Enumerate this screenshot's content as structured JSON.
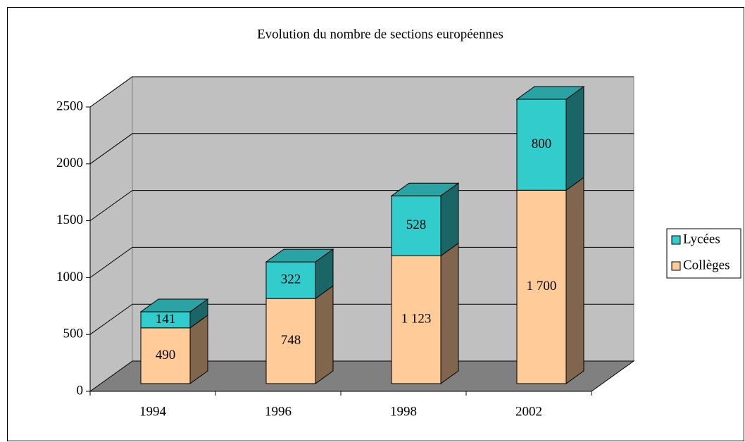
{
  "chart_data": {
    "type": "bar3d_stacked",
    "title": "Evolution du nombre de sections européennes",
    "categories": [
      "1994",
      "1996",
      "1998",
      "2002"
    ],
    "series": [
      {
        "name": "Collèges",
        "color": "#FFCC99",
        "values": [
          490,
          748,
          1123,
          1700
        ],
        "value_labels": [
          "490",
          "748",
          "1 123",
          "1 700"
        ]
      },
      {
        "name": "Lycées",
        "color": "#33CCCC",
        "values": [
          141,
          322,
          528,
          800
        ]
      }
    ],
    "ylim": [
      0,
      2500
    ],
    "yticks": [
      0,
      500,
      1000,
      1500,
      2000,
      2500
    ],
    "grid": true,
    "legend": "right"
  }
}
